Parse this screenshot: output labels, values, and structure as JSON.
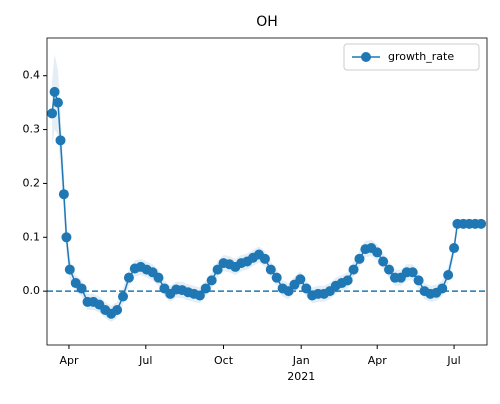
{
  "chart_data": {
    "type": "line",
    "title": "OH",
    "x": [
      "2020-03-12",
      "2020-03-15",
      "2020-03-19",
      "2020-03-22",
      "2020-03-26",
      "2020-03-29",
      "2020-04-02",
      "2020-04-09",
      "2020-04-16",
      "2020-04-23",
      "2020-04-30",
      "2020-05-07",
      "2020-05-14",
      "2020-05-21",
      "2020-05-28",
      "2020-06-04",
      "2020-06-11",
      "2020-06-18",
      "2020-06-25",
      "2020-07-02",
      "2020-07-09",
      "2020-07-16",
      "2020-07-23",
      "2020-07-30",
      "2020-08-06",
      "2020-08-13",
      "2020-08-20",
      "2020-08-27",
      "2020-09-03",
      "2020-09-10",
      "2020-09-17",
      "2020-09-24",
      "2020-10-01",
      "2020-10-08",
      "2020-10-15",
      "2020-10-22",
      "2020-10-29",
      "2020-11-05",
      "2020-11-12",
      "2020-11-19",
      "2020-11-26",
      "2020-12-03",
      "2020-12-10",
      "2020-12-17",
      "2020-12-24",
      "2020-12-31",
      "2021-01-07",
      "2021-01-14",
      "2021-01-21",
      "2021-01-28",
      "2021-02-04",
      "2021-02-11",
      "2021-02-18",
      "2021-02-25",
      "2021-03-04",
      "2021-03-11",
      "2021-03-18",
      "2021-03-25",
      "2021-04-01",
      "2021-04-08",
      "2021-04-15",
      "2021-04-22",
      "2021-04-29",
      "2021-05-06",
      "2021-05-13",
      "2021-05-20",
      "2021-05-27",
      "2021-06-03",
      "2021-06-10",
      "2021-06-17",
      "2021-06-24",
      "2021-07-01",
      "2021-07-05",
      "2021-07-12",
      "2021-07-19",
      "2021-07-26",
      "2021-08-02"
    ],
    "series": [
      {
        "name": "growth_rate",
        "color": "#1f77b4",
        "marker": "o",
        "values": [
          0.33,
          0.37,
          0.35,
          0.28,
          0.18,
          0.1,
          0.04,
          0.015,
          0.005,
          -0.02,
          -0.02,
          -0.025,
          -0.035,
          -0.042,
          -0.035,
          -0.01,
          0.025,
          0.042,
          0.045,
          0.04,
          0.035,
          0.025,
          0.005,
          -0.005,
          0.003,
          0.002,
          -0.002,
          -0.005,
          -0.008,
          0.005,
          0.02,
          0.04,
          0.052,
          0.05,
          0.045,
          0.052,
          0.055,
          0.062,
          0.068,
          0.06,
          0.04,
          0.025,
          0.005,
          0,
          0.012,
          0.022,
          0.005,
          -0.008,
          -0.005,
          -0.005,
          0,
          0.01,
          0.015,
          0.02,
          0.04,
          0.06,
          0.078,
          0.08,
          0.072,
          0.055,
          0.04,
          0.025,
          0.025,
          0.035,
          0.035,
          0.02,
          0,
          -0.005,
          -0.003,
          0.005,
          0.03,
          0.08,
          0.125,
          0.125,
          0.125,
          0.125,
          0.125
        ],
        "band_lower": [
          0.27,
          0.3,
          0.29,
          0.23,
          0.14,
          0.07,
          0.02,
          0,
          -0.01,
          -0.035,
          -0.035,
          -0.04,
          -0.05,
          -0.057,
          -0.05,
          -0.025,
          0.01,
          0.027,
          0.03,
          0.025,
          0.02,
          0.01,
          -0.01,
          -0.02,
          -0.012,
          -0.013,
          -0.017,
          -0.02,
          -0.023,
          -0.01,
          0.005,
          0.025,
          0.037,
          0.035,
          0.03,
          0.037,
          0.04,
          0.047,
          0.053,
          0.045,
          0.025,
          0.01,
          -0.01,
          -0.015,
          -0.003,
          0.007,
          -0.01,
          -0.023,
          -0.02,
          -0.02,
          -0.015,
          -0.005,
          0,
          0.005,
          0.025,
          0.045,
          0.063,
          0.065,
          0.057,
          0.04,
          0.025,
          0.01,
          0.01,
          0.02,
          0.02,
          0.005,
          -0.015,
          -0.02,
          -0.018,
          -0.01,
          0.015,
          0.065,
          0.12,
          0.12,
          0.12,
          0.12,
          0.12
        ],
        "band_upper": [
          0.39,
          0.44,
          0.41,
          0.33,
          0.22,
          0.13,
          0.06,
          0.03,
          0.02,
          -0.005,
          -0.005,
          -0.01,
          -0.02,
          -0.027,
          -0.02,
          0.005,
          0.04,
          0.057,
          0.06,
          0.055,
          0.05,
          0.04,
          0.02,
          0.01,
          0.018,
          0.017,
          0.013,
          0.01,
          0.007,
          0.02,
          0.035,
          0.055,
          0.067,
          0.065,
          0.06,
          0.067,
          0.07,
          0.077,
          0.083,
          0.075,
          0.055,
          0.04,
          0.02,
          0.015,
          0.027,
          0.037,
          0.02,
          0.007,
          0.01,
          0.01,
          0.015,
          0.025,
          0.03,
          0.035,
          0.055,
          0.075,
          0.093,
          0.095,
          0.087,
          0.07,
          0.055,
          0.04,
          0.04,
          0.05,
          0.05,
          0.035,
          0.015,
          0.01,
          0.012,
          0.02,
          0.045,
          0.095,
          0.13,
          0.13,
          0.13,
          0.13,
          0.13
        ],
        "band_color": "#1f77b4"
      }
    ],
    "xlim": [
      "2020-03-06",
      "2021-08-09"
    ],
    "xticks": [
      {
        "value": "2020-04-01",
        "label": "Apr"
      },
      {
        "value": "2020-07-01",
        "label": "Jul"
      },
      {
        "value": "2020-10-01",
        "label": "Oct"
      },
      {
        "value": "2021-01-01",
        "label": "Jan"
      },
      {
        "value": "2021-04-01",
        "label": "Apr"
      },
      {
        "value": "2021-07-01",
        "label": "Jul"
      }
    ],
    "x_year_label": {
      "value": "2021-01-01",
      "label": "2021"
    },
    "ylim": [
      -0.1,
      0.47
    ],
    "yticks": [
      {
        "value": 0,
        "label": "0.0"
      },
      {
        "value": 0.1,
        "label": "0.1"
      },
      {
        "value": 0.2,
        "label": "0.2"
      },
      {
        "value": 0.3,
        "label": "0.3"
      },
      {
        "value": 0.4,
        "label": "0.4"
      }
    ],
    "hline": {
      "value": 0,
      "style": "dashed",
      "color": "#1f77b4"
    },
    "legend": "upper right",
    "grid": false
  }
}
